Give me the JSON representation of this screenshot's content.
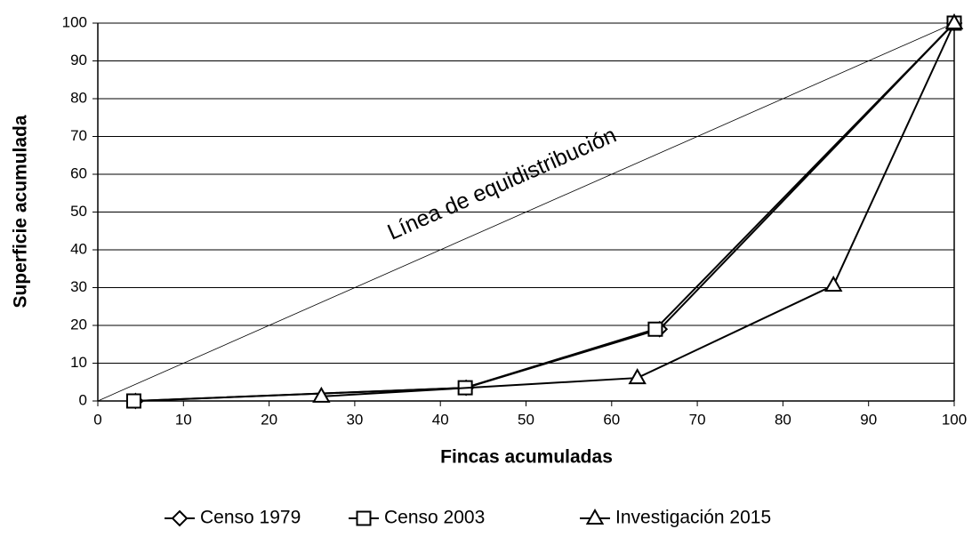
{
  "chart_data": {
    "type": "line",
    "xlabel": "Fincas acumuladas",
    "ylabel": "Superficie acumulada",
    "annotation": "Línea de equidistribución",
    "reference_line": {
      "x": [
        0,
        100
      ],
      "values": [
        0,
        100
      ]
    },
    "series": [
      {
        "name": "Censo 1979",
        "marker": "diamond",
        "color": "#000000",
        "x": [
          4.4,
          43,
          65.6,
          100
        ],
        "values": [
          0,
          3.5,
          19,
          100
        ]
      },
      {
        "name": "Censo 2003",
        "marker": "square",
        "color": "#000000",
        "x": [
          4.2,
          42.9,
          65.1,
          100
        ],
        "values": [
          0,
          3.5,
          19,
          100
        ]
      },
      {
        "name": "Investigación 2015",
        "marker": "triangle",
        "color": "#000000",
        "x": [
          26.1,
          63,
          85.9,
          100
        ],
        "values": [
          1.2,
          6.1,
          30.6,
          100
        ]
      }
    ],
    "xlim": [
      0,
      100
    ],
    "xticks": [
      0,
      10,
      20,
      30,
      40,
      50,
      60,
      70,
      80,
      90,
      100
    ],
    "ylim": [
      0,
      100
    ],
    "yticks": [
      0,
      10,
      20,
      30,
      40,
      50,
      60,
      70,
      80,
      90,
      100
    ],
    "grid": true,
    "legend": "bottom"
  }
}
